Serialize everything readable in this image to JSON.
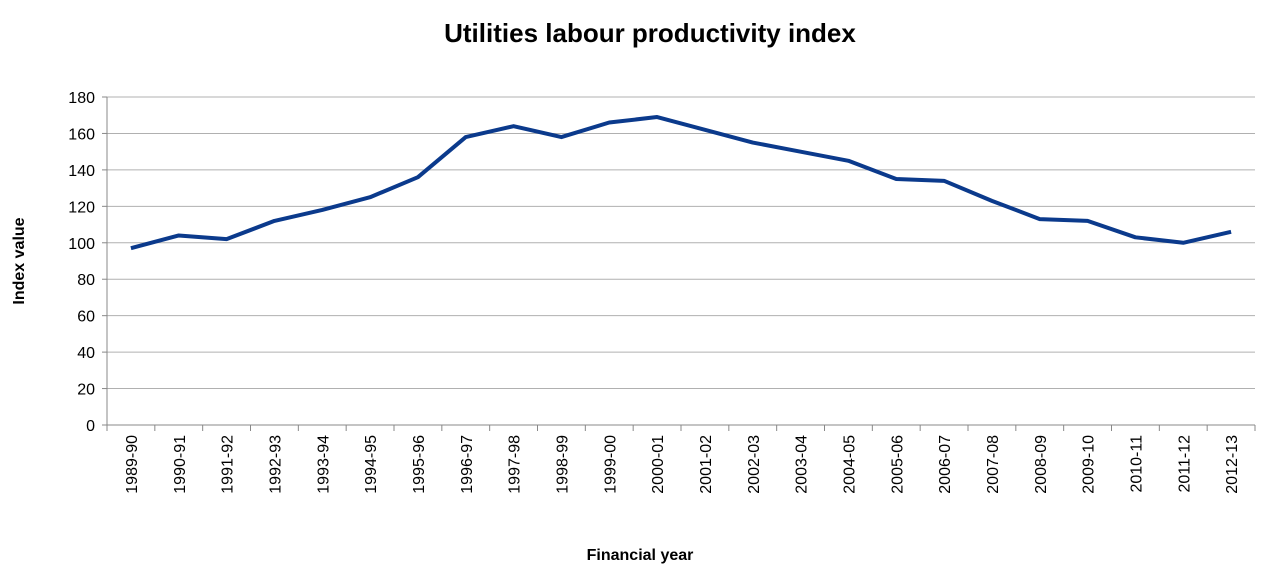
{
  "chart_data": {
    "type": "line",
    "title": "Utilities labour productivity index",
    "x_label": "Financial year",
    "y_label": "Index value",
    "categories": [
      "1989-90",
      "1990-91",
      "1991-92",
      "1992-93",
      "1993-94",
      "1994-95",
      "1995-96",
      "1996-97",
      "1997-98",
      "1998-99",
      "1999-00",
      "2000-01",
      "2001-02",
      "2002-03",
      "2003-04",
      "2004-05",
      "2005-06",
      "2006-07",
      "2007-08",
      "2008-09",
      "2009-10",
      "2010-11",
      "2011-12",
      "2012-13"
    ],
    "series": [
      {
        "name": "Utilities labour productivity index",
        "color": "#0b3a8c",
        "values": [
          97,
          104,
          102,
          112,
          118,
          125,
          136,
          158,
          164,
          158,
          166,
          169,
          162,
          155,
          150,
          145,
          135,
          134,
          123,
          113,
          112,
          103,
          100,
          106
        ]
      }
    ],
    "ylim": [
      0,
      180
    ],
    "yticks": [
      0,
      20,
      40,
      60,
      80,
      100,
      120,
      140,
      160,
      180
    ],
    "grid": true
  }
}
